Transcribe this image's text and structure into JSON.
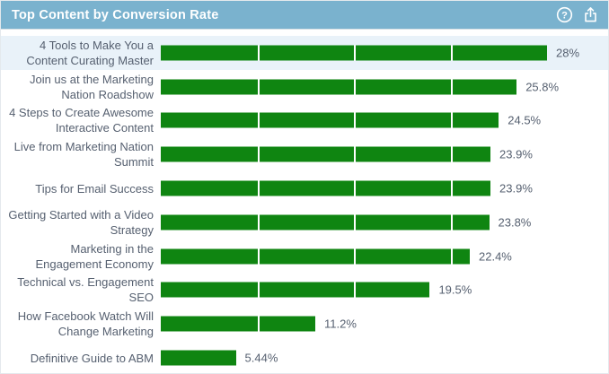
{
  "header": {
    "title": "Top Content by Conversion Rate",
    "icons": [
      {
        "name": "help-icon",
        "glyph": "question-mark-circle"
      },
      {
        "name": "share-icon",
        "glyph": "export-arrow-up"
      }
    ]
  },
  "colors": {
    "header_bg": "#7ab2ce",
    "header_text": "#ffffff",
    "bar": "#0f8511",
    "row_highlight": "#e9f2f9",
    "label_text": "#566070",
    "gridline": "#ffffff"
  },
  "chart_data": {
    "type": "bar",
    "orientation": "horizontal",
    "title": "Top Content by Conversion Rate",
    "xlabel": "",
    "ylabel": "",
    "xlim": [
      0,
      28
    ],
    "gridline_values": [
      7,
      14,
      21
    ],
    "grid": "white vertical lines over bars only",
    "legend": "none",
    "highlighted_index": 0,
    "categories": [
      "4 Tools to Make You a Content Curating Master",
      "Join us at the Marketing Nation Roadshow",
      "4 Steps to Create Awesome Interactive Content",
      "Live from Marketing Nation Summit",
      "Tips for Email Success",
      "Getting Started with a Video Strategy",
      "Marketing in the Engagement Economy",
      "Technical vs. Engagement SEO",
      "How Facebook Watch Will Change Marketing",
      "Definitive Guide to ABM"
    ],
    "values": [
      28,
      25.8,
      24.5,
      23.9,
      23.9,
      23.8,
      22.4,
      19.5,
      11.2,
      5.44
    ],
    "value_labels": [
      "28%",
      "25.8%",
      "24.5%",
      "23.9%",
      "23.9%",
      "23.8%",
      "22.4%",
      "19.5%",
      "11.2%",
      "5.44%"
    ]
  }
}
